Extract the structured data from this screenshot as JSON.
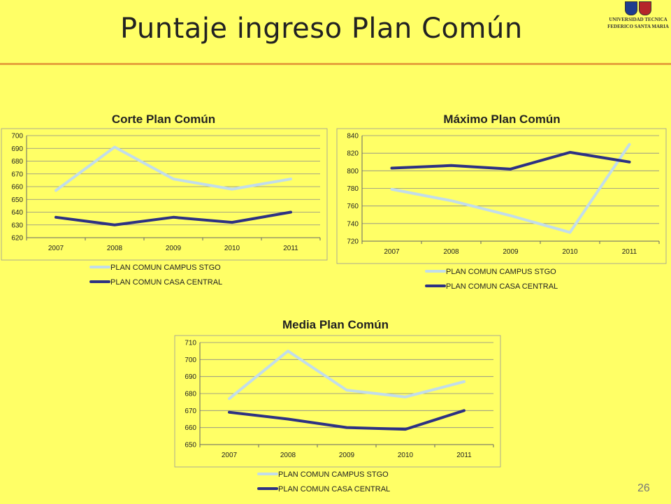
{
  "slide": {
    "title": "Puntaje ingreso Plan Común",
    "page_number": "26"
  },
  "logo": {
    "line1": "UNIVERSIDAD TECNICA",
    "line2": "FEDERICO SANTA MARIA"
  },
  "colors": {
    "background": "#ffff66",
    "accent_rule": "#e6a23c",
    "series_campus": "#c2ddea",
    "series_central": "#2d3183"
  },
  "chart_data": [
    {
      "type": "line",
      "title": "Corte Plan Común",
      "categories": [
        "2007",
        "2008",
        "2009",
        "2010",
        "2011"
      ],
      "ylim": [
        620,
        700
      ],
      "yticks": [
        620,
        630,
        640,
        650,
        660,
        670,
        680,
        690,
        700
      ],
      "grid": true,
      "legend": "bottom",
      "series": [
        {
          "name": "PLAN COMUN CAMPUS STGO",
          "values": [
            657,
            691,
            666,
            658,
            666
          ]
        },
        {
          "name": "PLAN COMUN CASA CENTRAL",
          "values": [
            636,
            630,
            636,
            632,
            640
          ]
        }
      ]
    },
    {
      "type": "line",
      "title": "Máximo Plan Común",
      "categories": [
        "2007",
        "2008",
        "2009",
        "2010",
        "2011"
      ],
      "ylim": [
        720,
        840
      ],
      "yticks": [
        720,
        740,
        760,
        780,
        800,
        820,
        840
      ],
      "grid": true,
      "legend": "bottom",
      "series": [
        {
          "name": "PLAN COMUN CAMPUS STGO",
          "values": [
            779,
            766,
            749,
            730,
            830
          ]
        },
        {
          "name": "PLAN COMUN CASA CENTRAL",
          "values": [
            803,
            806,
            802,
            821,
            810
          ]
        }
      ]
    },
    {
      "type": "line",
      "title": "Media Plan Común",
      "categories": [
        "2007",
        "2008",
        "2009",
        "2010",
        "2011"
      ],
      "ylim": [
        650,
        710
      ],
      "yticks": [
        650,
        660,
        670,
        680,
        690,
        700,
        710
      ],
      "grid": true,
      "legend": "bottom",
      "series": [
        {
          "name": "PLAN COMUN CAMPUS STGO",
          "values": [
            677,
            705,
            682,
            678,
            687
          ]
        },
        {
          "name": "PLAN COMUN CASA CENTRAL",
          "values": [
            669,
            665,
            660,
            659,
            670
          ]
        }
      ]
    }
  ]
}
